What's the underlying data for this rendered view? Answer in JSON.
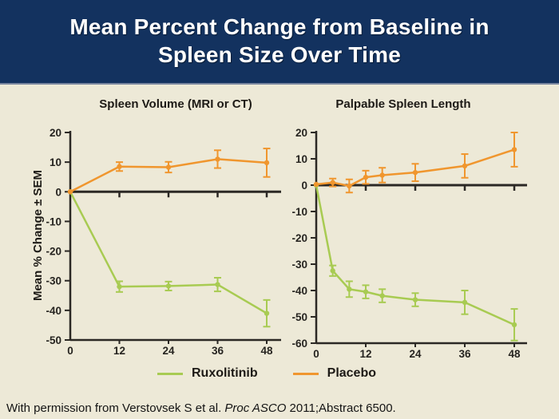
{
  "slide": {
    "title_line1": "Mean Percent Change from Baseline in",
    "title_line2": "Spleen Size Over Time",
    "footer": {
      "pre": "With permission from Verstovsek S et al. ",
      "italic": "Proc ASCO",
      "post": " 2011;Abstract 6500."
    }
  },
  "colors": {
    "header_bg": "#13325F",
    "header_divider": "#7A87A0",
    "slide_bg": "#EDE9D7",
    "ruxolitinib": "#A8CB52",
    "placebo": "#F0962E",
    "axis": "#2B2824",
    "title_text": "#FFFFFF"
  },
  "legend": [
    {
      "label": "Ruxolitinib",
      "color_key": "ruxolitinib"
    },
    {
      "label": "Placebo",
      "color_key": "placebo"
    }
  ],
  "chart_data": [
    {
      "type": "line",
      "title": "Spleen Volume (MRI or CT)",
      "ylabel": "Mean % Change ± SEM",
      "xlabel": "",
      "x": [
        0,
        12,
        24,
        36,
        48
      ],
      "xticks": [
        0,
        12,
        24,
        36,
        48
      ],
      "ylim": [
        -50,
        20
      ],
      "yticks": [
        20,
        10,
        0,
        -10,
        -20,
        -30,
        -40,
        -50
      ],
      "grid": false,
      "legend_position": "bottom",
      "series": [
        {
          "name": "Ruxolitinib",
          "color_key": "ruxolitinib",
          "values": [
            0,
            -32,
            -31.8,
            -31.3,
            -41
          ],
          "sem": [
            0,
            1.8,
            1.5,
            2.3,
            4.5
          ]
        },
        {
          "name": "Placebo",
          "color_key": "placebo",
          "values": [
            0,
            8.5,
            8.3,
            11,
            9.8
          ],
          "sem": [
            0,
            1.5,
            1.8,
            3,
            4.8
          ]
        }
      ]
    },
    {
      "type": "line",
      "title": "Palpable Spleen Length",
      "ylabel": "",
      "xlabel": "",
      "x": [
        0,
        4,
        8,
        12,
        16,
        24,
        36,
        48
      ],
      "xticks": [
        0,
        12,
        24,
        36,
        48
      ],
      "ylim": [
        -60,
        20
      ],
      "yticks": [
        20,
        10,
        0,
        -10,
        -20,
        -30,
        -40,
        -50,
        -60
      ],
      "grid": false,
      "legend_position": "bottom",
      "series": [
        {
          "name": "Ruxolitinib",
          "color_key": "ruxolitinib",
          "values": [
            0,
            -32.5,
            -39.5,
            -40.5,
            -42,
            -43.5,
            -44.5,
            -53
          ],
          "sem": [
            0,
            2,
            3,
            2.5,
            2.5,
            2.5,
            4.5,
            6
          ]
        },
        {
          "name": "Placebo",
          "color_key": "placebo",
          "values": [
            0.3,
            1,
            -0.3,
            3,
            3.8,
            4.8,
            7.3,
            13.5
          ],
          "sem": [
            0,
            1.5,
            2.5,
            2.5,
            2.8,
            3.3,
            4.5,
            6.5
          ]
        }
      ]
    }
  ]
}
